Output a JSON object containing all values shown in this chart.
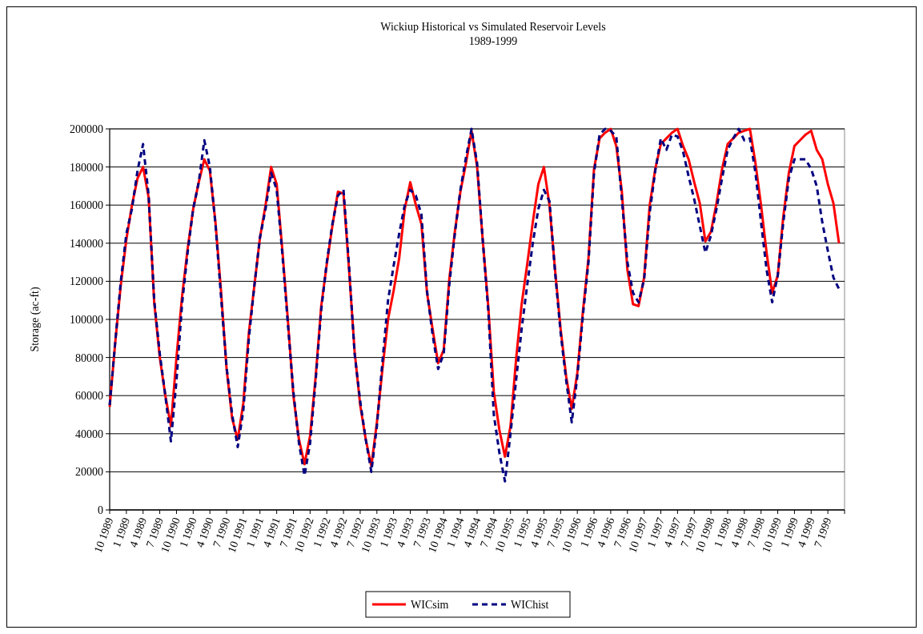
{
  "chart_data": {
    "type": "line",
    "title": "Wickiup Historical vs Simulated Reservoir Levels",
    "subtitle": "1989-1999",
    "ylabel": "Storage (ac-ft)",
    "categories": [
      "10 1989",
      null,
      null,
      "1 1989",
      null,
      null,
      "4 1989",
      null,
      null,
      "7 1989",
      null,
      null,
      "10 1990",
      null,
      null,
      "1 1990",
      null,
      null,
      "4 1990",
      null,
      null,
      "7 1990",
      null,
      null,
      "10 1991",
      null,
      null,
      "1 1991",
      null,
      null,
      "4 1991",
      null,
      null,
      "7 1991",
      null,
      null,
      "10 1992",
      null,
      null,
      "1 1992",
      null,
      null,
      "4 1992",
      null,
      null,
      "7 1992",
      null,
      null,
      "10 1993",
      null,
      null,
      "1 1993",
      null,
      null,
      "4 1993",
      null,
      null,
      "7 1993",
      null,
      null,
      "10 1994",
      null,
      null,
      "1 1994",
      null,
      null,
      "4 1994",
      null,
      null,
      "7 1994",
      null,
      null,
      "10 1995",
      null,
      null,
      "1 1995",
      null,
      null,
      "4 1995",
      null,
      null,
      "7 1995",
      null,
      null,
      "10 1996",
      null,
      null,
      "1 1996",
      null,
      null,
      "4 1996",
      null,
      null,
      "7 1996",
      null,
      null,
      "10 1997",
      null,
      null,
      "1 1997",
      null,
      null,
      "4 1997",
      null,
      null,
      "7 1997",
      null,
      null,
      "10 1998",
      null,
      null,
      "1 1998",
      null,
      null,
      "4 1998",
      null,
      null,
      "7 1998",
      null,
      null,
      "10 1999",
      null,
      null,
      "1 1999",
      null,
      null,
      "4 1999",
      null,
      null,
      "7 1999",
      null,
      null
    ],
    "series": [
      {
        "name": "WICsim",
        "color": "#ff0000",
        "line_style": "solid",
        "values": [
          54000,
          88000,
          118000,
          142000,
          160000,
          174000,
          180000,
          164000,
          109000,
          80000,
          60000,
          44000,
          80000,
          112000,
          137000,
          158000,
          172000,
          184000,
          178000,
          151000,
          115000,
          74000,
          48000,
          37000,
          56000,
          93000,
          118000,
          143000,
          160000,
          180000,
          171000,
          137000,
          100000,
          60000,
          37000,
          24000,
          39000,
          70000,
          107000,
          129000,
          149000,
          167000,
          166000,
          126000,
          83000,
          55000,
          37000,
          23000,
          46000,
          74000,
          100000,
          115000,
          132000,
          158000,
          172000,
          160000,
          150000,
          114000,
          95000,
          77000,
          84000,
          121000,
          146000,
          167000,
          182000,
          199000,
          180000,
          142000,
          107000,
          62000,
          42000,
          28000,
          44000,
          79000,
          108000,
          129000,
          151000,
          171000,
          180000,
          160000,
          126000,
          95000,
          70000,
          53000,
          72000,
          104000,
          132000,
          179000,
          195000,
          198000,
          200000,
          191000,
          167000,
          126000,
          108000,
          107000,
          122000,
          160000,
          179000,
          192000,
          195000,
          198000,
          200000,
          191000,
          184000,
          172000,
          161000,
          141000,
          146000,
          161000,
          179000,
          192000,
          195000,
          198000,
          199000,
          200000,
          182000,
          160000,
          135000,
          114000,
          123000,
          154000,
          177000,
          191000,
          194000,
          197000,
          199000,
          189000,
          184000,
          171000,
          161000,
          140000
        ]
      },
      {
        "name": "WIChist",
        "color": "#000080",
        "line_style": "dashed",
        "values": [
          55000,
          88000,
          120000,
          145000,
          158000,
          178000,
          192000,
          165000,
          110000,
          82000,
          60000,
          36000,
          68000,
          108000,
          135000,
          158000,
          172000,
          194000,
          180000,
          150000,
          112000,
          75000,
          50000,
          33000,
          52000,
          90000,
          118000,
          143000,
          158000,
          177000,
          168000,
          135000,
          98000,
          62000,
          35000,
          18000,
          35000,
          68000,
          105000,
          130000,
          150000,
          165000,
          168000,
          128000,
          82000,
          57000,
          37000,
          20000,
          44000,
          78000,
          110000,
          128000,
          145000,
          160000,
          168000,
          165000,
          155000,
          115000,
          92000,
          74000,
          82000,
          118000,
          145000,
          168000,
          185000,
          200000,
          182000,
          142000,
          105000,
          50000,
          30000,
          15000,
          40000,
          68000,
          95000,
          118000,
          140000,
          158000,
          168000,
          162000,
          125000,
          93000,
          68000,
          46000,
          70000,
          102000,
          130000,
          177000,
          197000,
          200000,
          199000,
          196000,
          163000,
          130000,
          114000,
          109000,
          121000,
          156000,
          178000,
          195000,
          189000,
          197000,
          196000,
          188000,
          175000,
          163000,
          149000,
          135000,
          144000,
          158000,
          174000,
          189000,
          195000,
          200000,
          194000,
          195000,
          177000,
          151000,
          126000,
          109000,
          123000,
          151000,
          174000,
          184000,
          184000,
          184000,
          179000,
          170000,
          151000,
          136000,
          122000,
          116000
        ]
      }
    ],
    "ylim": [
      0,
      200000
    ],
    "yticks": [
      0,
      20000,
      40000,
      60000,
      80000,
      100000,
      120000,
      140000,
      160000,
      180000,
      200000
    ],
    "grid": "y",
    "legend": "bottom"
  }
}
